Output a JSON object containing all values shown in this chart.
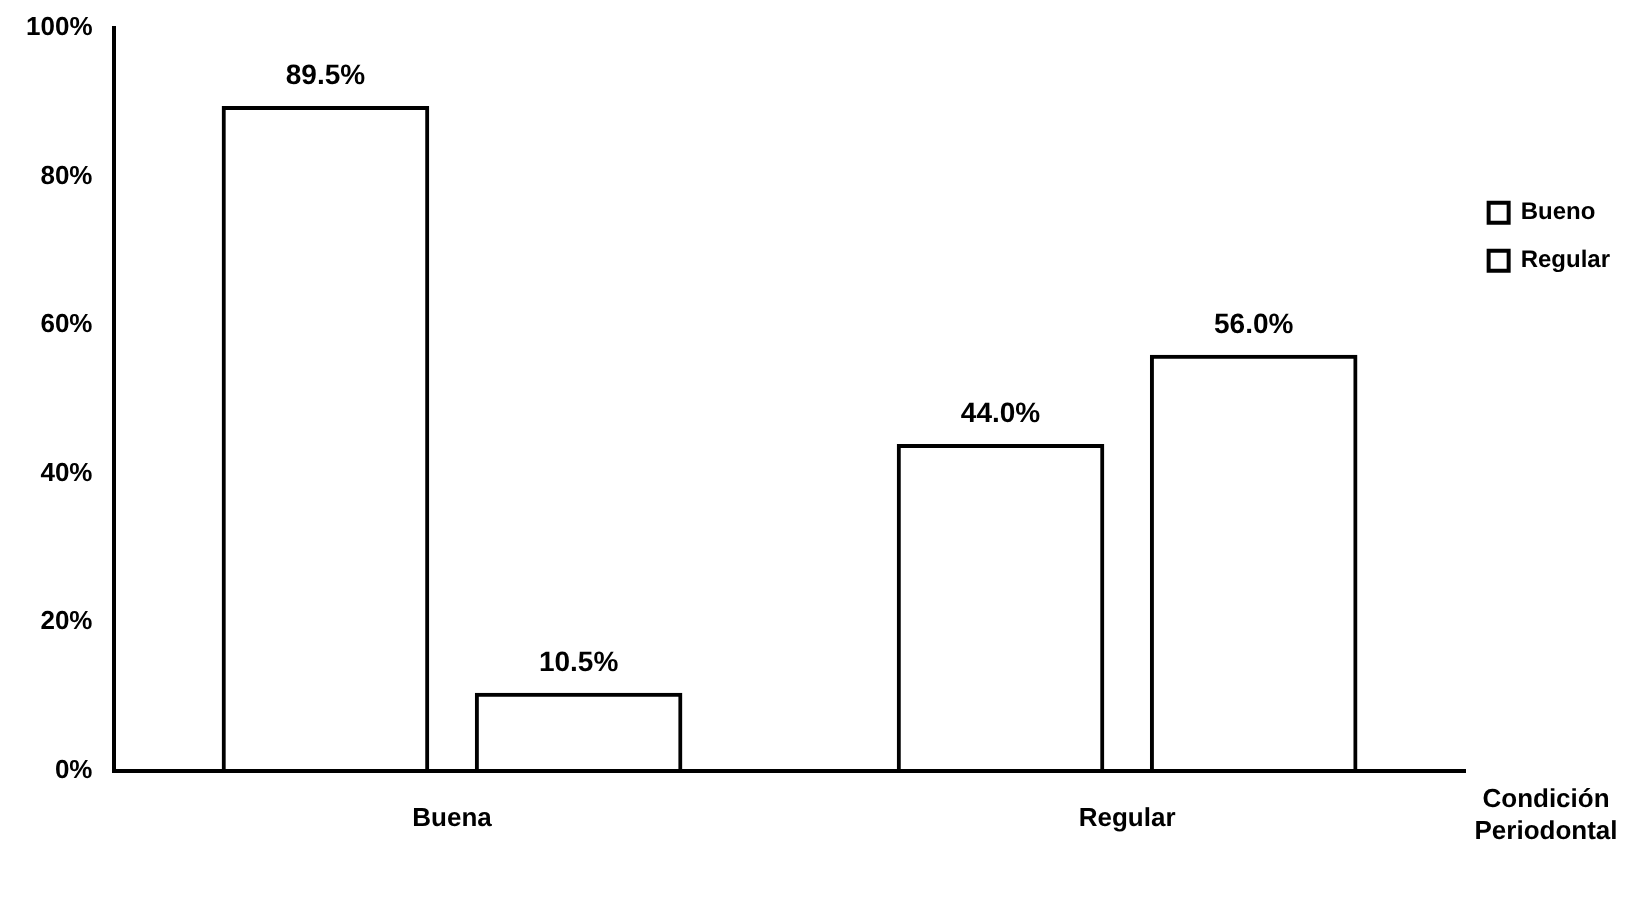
{
  "chart_data": {
    "type": "bar",
    "xlabel": "Condición Periodontal",
    "categories": [
      "Buena",
      "Regular"
    ],
    "series": [
      {
        "name": "Bueno",
        "color": "#000000",
        "values": [
          89.5,
          44.0
        ],
        "value_labels": [
          "89.5%",
          "44.0%"
        ]
      },
      {
        "name": "Regular",
        "color": "#000000",
        "values": [
          10.5,
          56.0
        ],
        "value_labels": [
          "10.5%",
          "56.0%"
        ]
      }
    ],
    "ylim": [
      0,
      100
    ],
    "yticks": [
      {
        "value": 0,
        "label": "0%"
      },
      {
        "value": 20,
        "label": "20%"
      },
      {
        "value": 40,
        "label": "40%"
      },
      {
        "value": 60,
        "label": "60%"
      },
      {
        "value": 80,
        "label": "80%"
      },
      {
        "value": 100,
        "label": "100%"
      }
    ],
    "grid": false,
    "legend": "right"
  }
}
